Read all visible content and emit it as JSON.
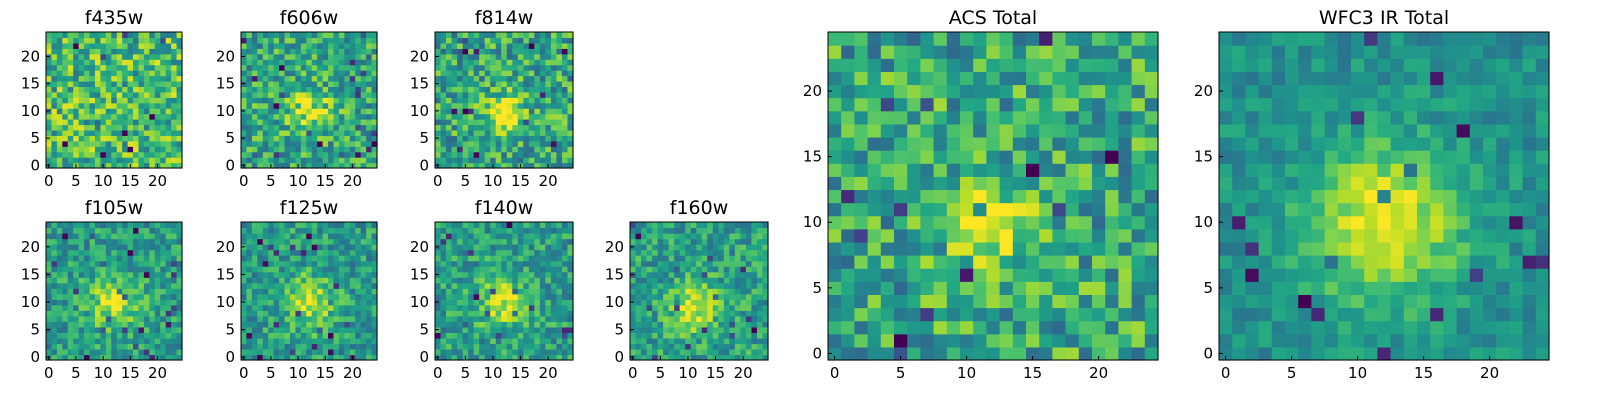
{
  "chart_data": {
    "type": "heatmap",
    "colormap": "viridis",
    "grid_size": 25,
    "panels": [
      {
        "id": "f435w",
        "title": "f435w",
        "size": "small",
        "xticks": [
          0,
          5,
          10,
          15,
          20
        ],
        "yticks": [
          0,
          5,
          10,
          15,
          20
        ],
        "blob": {
          "cx": 12,
          "cy": 12,
          "sigma": 4,
          "amp": 0.0
        },
        "base": 0.68,
        "noise": 0.28,
        "seed": 11
      },
      {
        "id": "f606w",
        "title": "f606w",
        "size": "small",
        "xticks": [
          0,
          5,
          10,
          15,
          20
        ],
        "yticks": [
          0,
          5,
          10,
          15,
          20
        ],
        "blob": {
          "cx": 12,
          "cy": 10,
          "sigma": 3,
          "amp": 0.28
        },
        "base": 0.6,
        "noise": 0.24,
        "seed": 22
      },
      {
        "id": "f814w",
        "title": "f814w",
        "size": "small",
        "xticks": [
          0,
          5,
          10,
          15,
          20
        ],
        "yticks": [
          0,
          5,
          10,
          15,
          20
        ],
        "blob": {
          "cx": 12,
          "cy": 10,
          "sigma": 2.3,
          "amp": 0.45
        },
        "base": 0.6,
        "noise": 0.26,
        "seed": 33
      },
      {
        "id": "f105w",
        "title": "f105w",
        "size": "small",
        "xticks": [
          0,
          5,
          10,
          15,
          20
        ],
        "yticks": [
          0,
          5,
          10,
          15,
          20
        ],
        "blob": {
          "cx": 12,
          "cy": 10,
          "sigma": 3.2,
          "amp": 0.38
        },
        "base": 0.55,
        "noise": 0.2,
        "seed": 44
      },
      {
        "id": "f125w",
        "title": "f125w",
        "size": "small",
        "xticks": [
          0,
          5,
          10,
          15,
          20
        ],
        "yticks": [
          0,
          5,
          10,
          15,
          20
        ],
        "blob": {
          "cx": 12,
          "cy": 10,
          "sigma": 3.2,
          "amp": 0.38
        },
        "base": 0.55,
        "noise": 0.2,
        "seed": 55
      },
      {
        "id": "f140w",
        "title": "f140w",
        "size": "small",
        "xticks": [
          0,
          5,
          10,
          15,
          20
        ],
        "yticks": [
          0,
          5,
          10,
          15,
          20
        ],
        "blob": {
          "cx": 12,
          "cy": 10,
          "sigma": 3.0,
          "amp": 0.36
        },
        "base": 0.56,
        "noise": 0.2,
        "seed": 66
      },
      {
        "id": "f160w",
        "title": "f160w",
        "size": "small",
        "xticks": [
          0,
          5,
          10,
          15,
          20
        ],
        "yticks": [
          0,
          5,
          10,
          15,
          20
        ],
        "blob": {
          "cx": 11,
          "cy": 9,
          "sigma": 3.0,
          "amp": 0.38
        },
        "base": 0.57,
        "noise": 0.2,
        "seed": 77
      },
      {
        "id": "acs-total",
        "title": "ACS Total",
        "size": "large",
        "xticks": [
          0,
          5,
          10,
          15,
          20
        ],
        "yticks": [
          0,
          5,
          10,
          15,
          20
        ],
        "blob": {
          "cx": 12,
          "cy": 10,
          "sigma": 2.3,
          "amp": 0.38
        },
        "base": 0.6,
        "noise": 0.26,
        "seed": 88
      },
      {
        "id": "wfc3-ir-total",
        "title": "WFC3 IR Total",
        "size": "large",
        "xticks": [
          0,
          5,
          10,
          15,
          20
        ],
        "yticks": [
          0,
          5,
          10,
          15,
          20
        ],
        "blob": {
          "cx": 12,
          "cy": 10,
          "sigma": 4.2,
          "amp": 0.48
        },
        "base": 0.5,
        "noise": 0.12,
        "seed": 99
      }
    ]
  }
}
